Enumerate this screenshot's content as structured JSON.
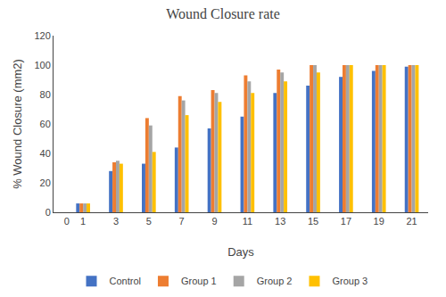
{
  "chart_data": {
    "type": "bar",
    "title": "Wound Closure rate",
    "x_label": "Days",
    "y_label": "% Wound Closure (mm2)",
    "x": [
      0,
      1,
      3,
      5,
      7,
      9,
      11,
      13,
      15,
      17,
      19,
      21
    ],
    "series": [
      {
        "name": "Control",
        "color": "#4472C4",
        "values": [
          0,
          6,
          28,
          33,
          44,
          57,
          65,
          81,
          86,
          92,
          96,
          99
        ]
      },
      {
        "name": "Group 1",
        "color": "#ED7D31",
        "values": [
          0,
          6,
          34,
          64,
          79,
          83,
          93,
          97,
          100,
          100,
          100,
          100
        ]
      },
      {
        "name": "Group 2",
        "color": "#A5A5A5",
        "values": [
          0,
          6,
          35,
          59,
          76,
          81,
          89,
          95,
          100,
          100,
          100,
          100
        ]
      },
      {
        "name": "Group 3",
        "color": "#FFC000",
        "values": [
          0,
          6,
          33,
          41,
          66,
          75,
          81,
          89,
          95,
          100,
          100,
          100
        ]
      }
    ],
    "xlim": [
      -0.8,
      22.0
    ],
    "xticks": [
      0,
      1,
      3,
      5,
      7,
      9,
      11,
      13,
      15,
      17,
      19,
      21
    ],
    "ylim": [
      0,
      120
    ],
    "yticks": [
      0,
      20,
      40,
      60,
      80,
      100,
      120
    ],
    "grid": false,
    "legend": "bottom"
  }
}
